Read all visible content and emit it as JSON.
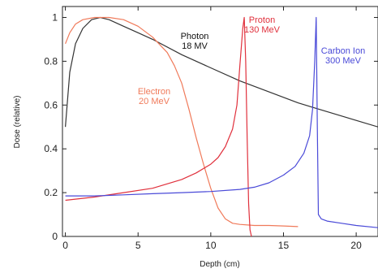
{
  "chart_data": {
    "type": "line",
    "xlabel": "Depth (cm)",
    "ylabel": "Dose (relative)",
    "xlim": [
      -0.2,
      21.5
    ],
    "ylim": [
      0,
      1.05
    ],
    "x_ticks": [
      {
        "value": 0,
        "label": "0"
      },
      {
        "value": 5,
        "label": "5"
      },
      {
        "value": 10,
        "label": "10"
      },
      {
        "value": 15,
        "label": "15"
      },
      {
        "value": 20,
        "label": "20"
      }
    ],
    "y_ticks": [
      {
        "value": 0,
        "label": "0"
      },
      {
        "value": 0.2,
        "label": "0.2"
      },
      {
        "value": 0.4,
        "label": "0.4"
      },
      {
        "value": 0.6,
        "label": "0.6"
      },
      {
        "value": 0.8,
        "label": "0.8"
      },
      {
        "value": 1.0,
        "label": "1"
      }
    ],
    "grid": false,
    "series": [
      {
        "name": "Photon\n18 MV",
        "color": "#333333",
        "label_lines": [
          "Photon",
          "18 MV"
        ],
        "points": [
          [
            0,
            0.5
          ],
          [
            0.3,
            0.75
          ],
          [
            0.7,
            0.88
          ],
          [
            1.2,
            0.95
          ],
          [
            1.8,
            0.99
          ],
          [
            2.4,
            1.0
          ],
          [
            3,
            0.99
          ],
          [
            4,
            0.96
          ],
          [
            5,
            0.93
          ],
          [
            6,
            0.9
          ],
          [
            8,
            0.83
          ],
          [
            10,
            0.77
          ],
          [
            12,
            0.71
          ],
          [
            14,
            0.66
          ],
          [
            16,
            0.61
          ],
          [
            18,
            0.57
          ],
          [
            20,
            0.53
          ],
          [
            21.5,
            0.5
          ]
        ]
      },
      {
        "name": "Electron\n20 MeV",
        "color": "#f07a5a",
        "label_lines": [
          "Electron",
          "20 MeV"
        ],
        "points": [
          [
            0,
            0.88
          ],
          [
            0.3,
            0.93
          ],
          [
            0.7,
            0.97
          ],
          [
            1.2,
            0.99
          ],
          [
            2,
            1.0
          ],
          [
            3,
            1.0
          ],
          [
            4,
            0.99
          ],
          [
            5,
            0.96
          ],
          [
            6,
            0.91
          ],
          [
            7,
            0.84
          ],
          [
            7.5,
            0.78
          ],
          [
            8,
            0.7
          ],
          [
            8.5,
            0.58
          ],
          [
            9,
            0.45
          ],
          [
            9.5,
            0.33
          ],
          [
            10,
            0.22
          ],
          [
            10.5,
            0.13
          ],
          [
            11,
            0.08
          ],
          [
            11.5,
            0.06
          ],
          [
            12,
            0.055
          ],
          [
            13,
            0.05
          ],
          [
            14,
            0.05
          ],
          [
            15,
            0.048
          ],
          [
            16,
            0.045
          ]
        ]
      },
      {
        "name": "Proton\n130 MeV",
        "color": "#e0303c",
        "label_lines": [
          "Proton",
          "130 MeV"
        ],
        "points": [
          [
            0,
            0.165
          ],
          [
            2,
            0.18
          ],
          [
            4,
            0.2
          ],
          [
            6,
            0.22
          ],
          [
            8,
            0.26
          ],
          [
            9,
            0.29
          ],
          [
            10,
            0.33
          ],
          [
            10.5,
            0.36
          ],
          [
            11,
            0.41
          ],
          [
            11.5,
            0.49
          ],
          [
            11.8,
            0.6
          ],
          [
            12,
            0.78
          ],
          [
            12.2,
            0.95
          ],
          [
            12.3,
            1.0
          ],
          [
            12.4,
            0.8
          ],
          [
            12.5,
            0.45
          ],
          [
            12.6,
            0.15
          ],
          [
            12.7,
            0.03
          ],
          [
            12.8,
            0.0
          ]
        ]
      },
      {
        "name": "Carbon Ion\n300 MeV",
        "color": "#4a4ad8",
        "label_lines": [
          "Carbon Ion",
          "300 MeV"
        ],
        "points": [
          [
            0,
            0.185
          ],
          [
            2,
            0.185
          ],
          [
            4,
            0.19
          ],
          [
            6,
            0.195
          ],
          [
            8,
            0.2
          ],
          [
            10,
            0.205
          ],
          [
            12,
            0.215
          ],
          [
            13,
            0.225
          ],
          [
            14,
            0.245
          ],
          [
            15,
            0.28
          ],
          [
            15.8,
            0.32
          ],
          [
            16.4,
            0.38
          ],
          [
            16.8,
            0.46
          ],
          [
            17,
            0.58
          ],
          [
            17.15,
            0.8
          ],
          [
            17.25,
            1.0
          ],
          [
            17.33,
            0.5
          ],
          [
            17.4,
            0.1
          ],
          [
            17.6,
            0.08
          ],
          [
            18,
            0.07
          ],
          [
            19,
            0.06
          ],
          [
            20,
            0.05
          ],
          [
            21.5,
            0.04
          ]
        ]
      }
    ]
  }
}
